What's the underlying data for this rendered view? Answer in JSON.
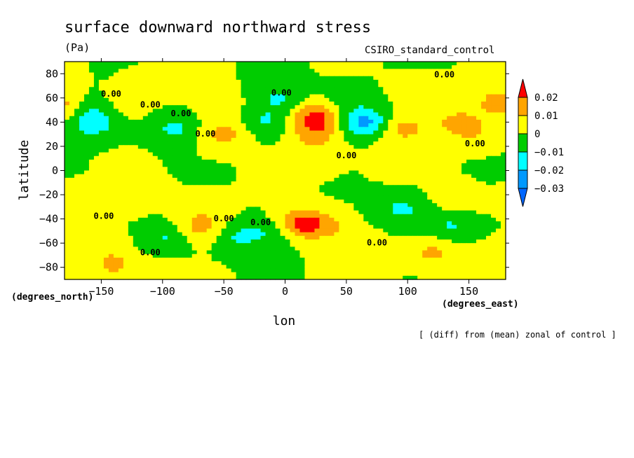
{
  "chart_data": {
    "type": "heatmap",
    "title": "surface downward northward stress",
    "units": "(Pa)",
    "dataset_label": "CSIRO_standard_control",
    "xlabel": "lon",
    "ylabel": "latitude",
    "x_units": "(degrees_east)",
    "y_units": "(degrees_north)",
    "xlim": [
      -180,
      180
    ],
    "ylim": [
      -90,
      90
    ],
    "xticks": [
      -150,
      -100,
      -50,
      0,
      50,
      100,
      150
    ],
    "yticks": [
      80,
      60,
      40,
      20,
      0,
      -20,
      -40,
      -60,
      -80
    ],
    "contour_label": "0.00",
    "footnote": "[ (diff) from (mean) zonal of control ]",
    "legend": {
      "levels": [
        "0.02",
        "0.01",
        "0",
        "-0.01",
        "-0.02",
        "-0.03"
      ],
      "colors": [
        "#ff0000",
        "#ffa500",
        "#ffff00",
        "#00cc00",
        "#00ffff",
        "#0099ff",
        "#0066ff"
      ]
    },
    "features": [
      {
        "lon": -158,
        "lat": 38,
        "value": -0.015
      },
      {
        "lon": -160,
        "lat": 50,
        "value": -0.01
      },
      {
        "lon": -178,
        "lat": 50,
        "value": 0.012
      },
      {
        "lon": -130,
        "lat": 55,
        "value": 0.006
      },
      {
        "lon": -110,
        "lat": 70,
        "value": 0.006
      },
      {
        "lon": -90,
        "lat": 35,
        "value": -0.012
      },
      {
        "lon": -50,
        "lat": 30,
        "value": 0.014
      },
      {
        "lon": -55,
        "lat": 55,
        "value": 0.006
      },
      {
        "lon": -15,
        "lat": 40,
        "value": -0.011
      },
      {
        "lon": -5,
        "lat": 60,
        "value": -0.011
      },
      {
        "lon": 25,
        "lat": 45,
        "value": 0.022
      },
      {
        "lon": 25,
        "lat": 30,
        "value": 0.014
      },
      {
        "lon": 25,
        "lat": 10,
        "value": 0.006
      },
      {
        "lon": 65,
        "lat": 40,
        "value": -0.024
      },
      {
        "lon": 50,
        "lat": 60,
        "value": -0.006
      },
      {
        "lon": 95,
        "lat": 35,
        "value": 0.014
      },
      {
        "lon": 88,
        "lat": 10,
        "value": 0.006
      },
      {
        "lon": 110,
        "lat": 65,
        "value": 0.006
      },
      {
        "lon": 140,
        "lat": 40,
        "value": 0.012
      },
      {
        "lon": 155,
        "lat": 30,
        "value": 0.008
      },
      {
        "lon": 170,
        "lat": 60,
        "value": 0.008
      },
      {
        "lon": -165,
        "lat": -25,
        "value": 0.006
      },
      {
        "lon": -120,
        "lat": -20,
        "value": 0.006
      },
      {
        "lon": -70,
        "lat": -48,
        "value": 0.015
      },
      {
        "lon": -68,
        "lat": -30,
        "value": 0.006
      },
      {
        "lon": -95,
        "lat": -55,
        "value": -0.012
      },
      {
        "lon": -140,
        "lat": -78,
        "value": 0.012
      },
      {
        "lon": -150,
        "lat": -60,
        "value": 0.006
      },
      {
        "lon": -40,
        "lat": -55,
        "value": -0.011
      },
      {
        "lon": -10,
        "lat": -50,
        "value": -0.011
      },
      {
        "lon": 10,
        "lat": -44,
        "value": 0.022
      },
      {
        "lon": 30,
        "lat": -45,
        "value": 0.012
      },
      {
        "lon": 55,
        "lat": -60,
        "value": 0.006
      },
      {
        "lon": 95,
        "lat": -32,
        "value": -0.012
      },
      {
        "lon": 135,
        "lat": -45,
        "value": -0.011
      },
      {
        "lon": 120,
        "lat": -68,
        "value": 0.012
      },
      {
        "lon": 140,
        "lat": -25,
        "value": 0.006
      },
      {
        "lon": 170,
        "lat": -75,
        "value": 0.006
      },
      {
        "lon": -100,
        "lat": -85,
        "value": 0.006
      },
      {
        "lon": 60,
        "lat": -82,
        "value": 0.006
      }
    ]
  }
}
